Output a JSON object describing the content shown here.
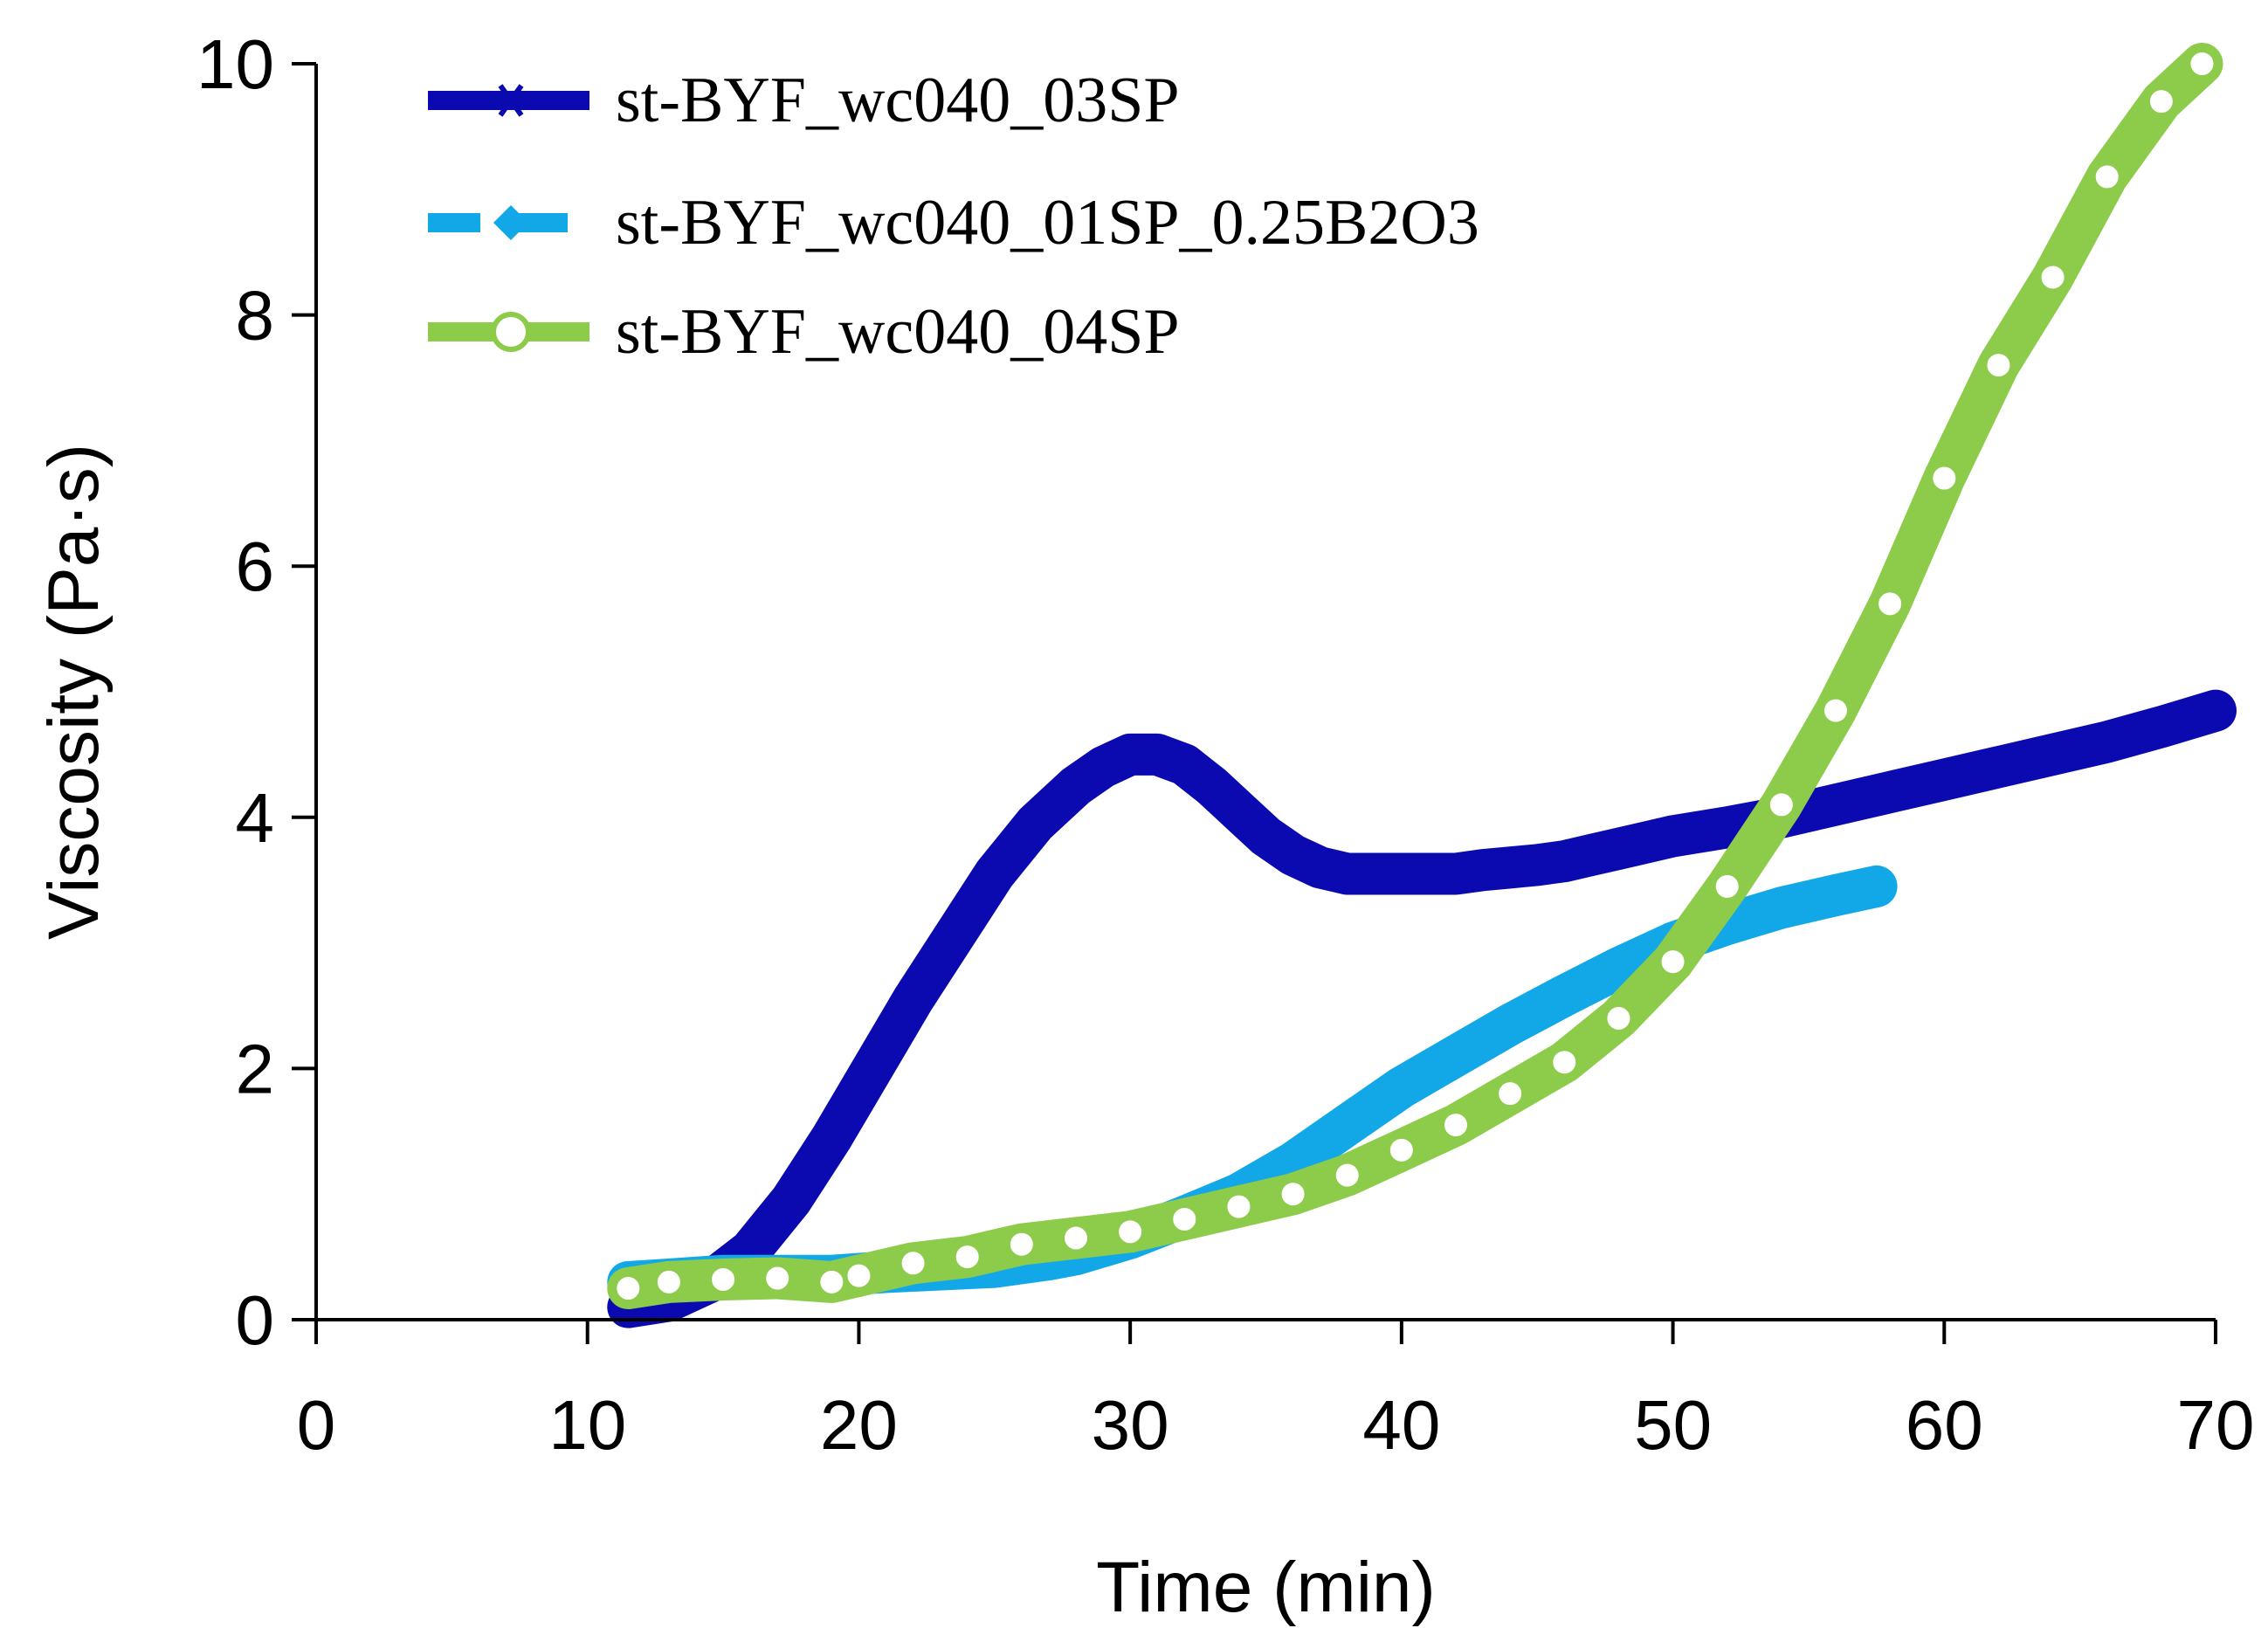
{
  "chart_data": {
    "type": "line",
    "title": "",
    "xlabel": "Time (min)",
    "ylabel": "Viscosity (Pa·s)",
    "xlim": [
      0,
      70
    ],
    "ylim": [
      0,
      10
    ],
    "xticks": [
      0,
      10,
      20,
      30,
      40,
      50,
      60,
      70
    ],
    "yticks": [
      0,
      2,
      4,
      6,
      8,
      10
    ],
    "grid": false,
    "legend_position": "top-left",
    "series": [
      {
        "name": "st-BYF_wc040_03SP",
        "color": "#0a0ab0",
        "marker": "asterisk",
        "dash": "solid",
        "x": [
          11.5,
          13,
          14.5,
          16,
          17.5,
          19,
          20.5,
          22,
          23.5,
          25,
          26.5,
          28,
          29,
          30,
          31,
          32,
          33,
          34,
          35,
          36,
          37,
          38,
          39,
          40,
          41,
          42,
          43,
          44,
          45,
          46,
          47,
          48,
          49,
          50,
          52,
          54,
          56,
          58,
          60,
          62,
          64,
          66,
          68,
          70
        ],
        "y": [
          0.1,
          0.15,
          0.3,
          0.55,
          0.95,
          1.45,
          2.0,
          2.55,
          3.05,
          3.55,
          3.95,
          4.25,
          4.4,
          4.5,
          4.5,
          4.42,
          4.25,
          4.05,
          3.85,
          3.7,
          3.6,
          3.55,
          3.55,
          3.55,
          3.55,
          3.55,
          3.58,
          3.6,
          3.62,
          3.65,
          3.7,
          3.75,
          3.8,
          3.85,
          3.92,
          4.0,
          4.1,
          4.2,
          4.3,
          4.4,
          4.5,
          4.6,
          4.72,
          4.85
        ]
      },
      {
        "name": "st-BYF_wc040_01SP_0.25B2O3",
        "color": "#12a8e8",
        "marker": "diamond",
        "dash": "dashed",
        "x": [
          11.5,
          13,
          15,
          17,
          19,
          21,
          23,
          25,
          27,
          28,
          30,
          32,
          34,
          36,
          38,
          40,
          42,
          44,
          46,
          48,
          50,
          52,
          54,
          56,
          57.5
        ],
        "y": [
          0.3,
          0.32,
          0.35,
          0.35,
          0.35,
          0.38,
          0.4,
          0.42,
          0.48,
          0.52,
          0.65,
          0.82,
          1.0,
          1.25,
          1.55,
          1.85,
          2.1,
          2.35,
          2.58,
          2.8,
          3.0,
          3.15,
          3.28,
          3.38,
          3.45
        ]
      },
      {
        "name": "st-BYF_wc040_04SP",
        "color": "#8ccc4a",
        "marker": "circle",
        "dash": "solid",
        "x": [
          11.5,
          13,
          15,
          17,
          19,
          20,
          22,
          24,
          26,
          28,
          30,
          32,
          34,
          36,
          38,
          40,
          42,
          44,
          46,
          48,
          50,
          52,
          54,
          56,
          58,
          60,
          62,
          64,
          66,
          68,
          69.5
        ],
        "y": [
          0.25,
          0.3,
          0.32,
          0.33,
          0.3,
          0.35,
          0.45,
          0.5,
          0.6,
          0.65,
          0.7,
          0.8,
          0.9,
          1.0,
          1.15,
          1.35,
          1.55,
          1.8,
          2.05,
          2.4,
          2.85,
          3.45,
          4.1,
          4.85,
          5.7,
          6.7,
          7.6,
          8.3,
          9.1,
          9.7,
          10.0
        ]
      }
    ]
  }
}
